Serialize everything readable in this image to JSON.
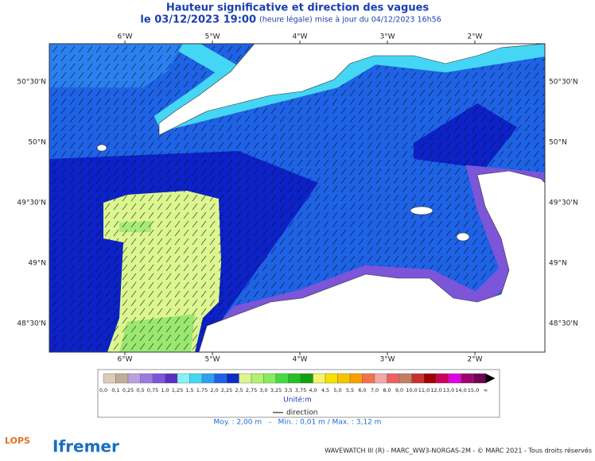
{
  "header": {
    "title": "Hauteur significative et direction des vagues",
    "date": "le 03/12/2023 19:00",
    "update": "(heure légale) mise à jour du 04/12/2023 16h56"
  },
  "map": {
    "lon_ticks": [
      "6°W",
      "5°W",
      "4°W",
      "3°W",
      "2°W"
    ],
    "lat_ticks": [
      "50°30'N",
      "50°N",
      "49°30'N",
      "49°N",
      "48°30'N"
    ]
  },
  "colorbar": {
    "labels": [
      "0,0",
      "0,1",
      "0,25",
      "0,5",
      "0,75",
      "1,0",
      "1,25",
      "1,5",
      "1,75",
      "2,0",
      "2,25",
      "2,5",
      "2,75",
      "3,0",
      "3,25",
      "3,5",
      "3,75",
      "4,0",
      "4,5",
      "5,0",
      "5,5",
      "6,0",
      "7,0",
      "8,0",
      "9,0",
      "10,0",
      "11,0",
      "12,0",
      "13,0",
      "14,0",
      "15,0",
      "∞"
    ],
    "colors": [
      "#dccbb8",
      "#c4ab98",
      "#bba0e0",
      "#9a7ae0",
      "#7c55d8",
      "#5b2fc0",
      "#86f2f8",
      "#44d6f4",
      "#2c9ff0",
      "#1f60e6",
      "#0c2ac4",
      "#dcf690",
      "#b4f070",
      "#84ee5c",
      "#44dc40",
      "#22c022",
      "#10a010",
      "#f4f46a",
      "#f8e000",
      "#f8c400",
      "#f8a000",
      "#f47050",
      "#f4a8a8",
      "#ec6060",
      "#c08060",
      "#c83030",
      "#a00000",
      "#c8005c",
      "#e000e0",
      "#a00070",
      "#700050"
    ],
    "unit": "Unité:m",
    "direction": "direction"
  },
  "stats": "Moy. : 2,00 m   -   Min. : 0,01 m / Max. : 3,12 m",
  "footer": {
    "credit": "WAVEWATCH III (R) - MARC_WW3-NORGAS-2M - © MARC 2021 - Tous droits réservés",
    "lops": "LOPS",
    "ifremer": "Ifremer"
  }
}
